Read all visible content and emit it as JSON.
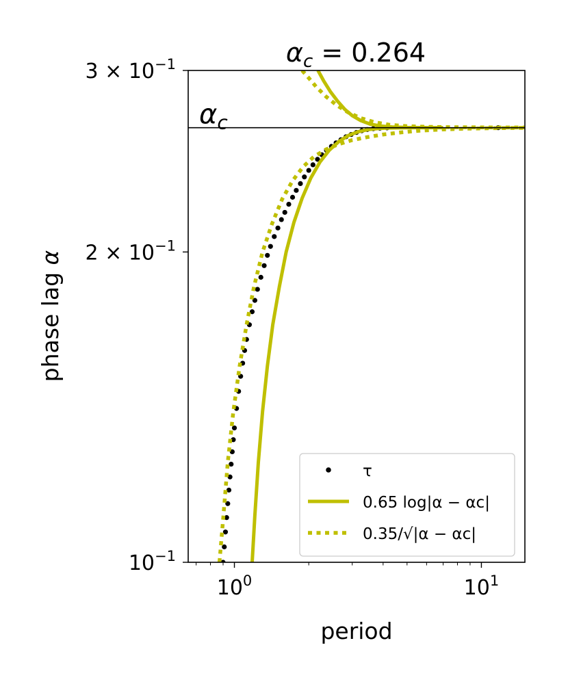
{
  "chart_data": {
    "type": "line",
    "title": "α_c = 0.264",
    "title_math": {
      "base": "α",
      "sub": "c",
      "rest": " = 0.264"
    },
    "xlabel": "period",
    "ylabel": "phase lag α",
    "xscale": "log",
    "yscale": "log",
    "xlim": [
      0.65,
      15
    ],
    "ylim": [
      0.1,
      0.3
    ],
    "x_ticks": [
      {
        "value": 1,
        "base": "10",
        "exp": "0"
      },
      {
        "value": 10,
        "base": "10",
        "exp": "1"
      }
    ],
    "y_ticks": [
      {
        "value": 0.1,
        "base": "10",
        "exp": "−1",
        "prefix": ""
      },
      {
        "value": 0.2,
        "base": "10",
        "exp": "−1",
        "prefix": "2 × "
      },
      {
        "value": 0.3,
        "base": "10",
        "exp": "−1",
        "prefix": "3 × "
      }
    ],
    "hline": {
      "y": 0.264,
      "label": "α",
      "label_sub": "c",
      "color": "#000000"
    },
    "grid": false,
    "legend": {
      "position": "bottom-right",
      "entries": [
        {
          "label": "τ",
          "style": "dots",
          "color": "#000000"
        },
        {
          "label": "0.65 log|α − αc|",
          "style": "solid",
          "color": "#bfbf00"
        },
        {
          "label": "0.35/√|α − αc|",
          "style": "dotted",
          "color": "#bfbf00"
        }
      ]
    },
    "series": [
      {
        "name": "τ",
        "style": "dots",
        "color": "#000000",
        "x": [
          0.9,
          0.91,
          0.92,
          0.93,
          0.94,
          0.95,
          0.96,
          0.97,
          0.98,
          0.99,
          1.0,
          1.02,
          1.04,
          1.06,
          1.08,
          1.1,
          1.12,
          1.15,
          1.18,
          1.21,
          1.24,
          1.28,
          1.32,
          1.36,
          1.4,
          1.45,
          1.5,
          1.55,
          1.6,
          1.66,
          1.72,
          1.78,
          1.85,
          1.92,
          2.0,
          2.08,
          2.17,
          2.26,
          2.36,
          2.47,
          2.58,
          2.7,
          2.83,
          2.97,
          3.12,
          3.28,
          3.45,
          3.65,
          3.88,
          4.15,
          11.7
        ],
        "y": [
          0.1,
          0.1035,
          0.107,
          0.1105,
          0.114,
          0.1175,
          0.121,
          0.1245,
          0.128,
          0.1315,
          0.135,
          0.141,
          0.1465,
          0.1515,
          0.156,
          0.1605,
          0.1645,
          0.17,
          0.175,
          0.1795,
          0.184,
          0.189,
          0.194,
          0.1985,
          0.2025,
          0.207,
          0.211,
          0.215,
          0.2185,
          0.2225,
          0.226,
          0.2295,
          0.233,
          0.2365,
          0.24,
          0.243,
          0.246,
          0.2485,
          0.251,
          0.2532,
          0.2552,
          0.257,
          0.2587,
          0.26,
          0.2612,
          0.2622,
          0.2629,
          0.2634,
          0.2637,
          0.2639,
          0.264
        ]
      },
      {
        "name": "0.65 log|α − αc|",
        "style": "solid",
        "color": "#bfbf00",
        "segments": [
          {
            "x": [
              1.18,
              1.21,
              1.25,
              1.3,
              1.36,
              1.43,
              1.52,
              1.62,
              1.74,
              1.88,
              2.04,
              2.22,
              2.42,
              2.65,
              2.9,
              3.18,
              3.48,
              3.82,
              4.2,
              4.7,
              5.5,
              7.0
            ],
            "y": [
              0.1,
              0.111,
              0.125,
              0.14,
              0.155,
              0.17,
              0.185,
              0.2,
              0.2135,
              0.2255,
              0.236,
              0.2445,
              0.251,
              0.256,
              0.2595,
              0.2617,
              0.2629,
              0.2635,
              0.2638,
              0.2639,
              0.264,
              0.264
            ]
          },
          {
            "x": [
              2.18,
              2.3,
              2.45,
              2.62,
              2.8,
              3.0,
              3.25,
              3.55,
              3.9,
              4.35,
              5.0,
              6.0
            ],
            "y": [
              0.3,
              0.293,
              0.286,
              0.28,
              0.275,
              0.2712,
              0.2682,
              0.2661,
              0.265,
              0.2644,
              0.2641,
              0.264
            ]
          }
        ]
      },
      {
        "name": "0.35/√|α − αc|",
        "style": "dotted",
        "color": "#bfbf00",
        "segments": [
          {
            "x": [
              0.87,
              0.9,
              0.94,
              0.99,
              1.05,
              1.12,
              1.2,
              1.3,
              1.42,
              1.56,
              1.72,
              1.9,
              2.1,
              2.35,
              2.65,
              3.0,
              3.45,
              4.0,
              4.7,
              5.6,
              6.8,
              8.5,
              11.0,
              15.0
            ],
            "y": [
              0.1,
              0.11,
              0.125,
              0.14,
              0.155,
              0.17,
              0.185,
              0.2,
              0.213,
              0.225,
              0.2345,
              0.242,
              0.2475,
              0.2515,
              0.2545,
              0.2568,
              0.2585,
              0.26,
              0.2612,
              0.2622,
              0.2629,
              0.2634,
              0.2637,
              0.2639
            ]
          },
          {
            "x": [
              1.88,
              2.0,
              2.15,
              2.35,
              2.6,
              2.9,
              3.25,
              3.7,
              4.25,
              5.0,
              6.0,
              7.5,
              9.5,
              12.0,
              15.0
            ],
            "y": [
              0.3,
              0.295,
              0.289,
              0.283,
              0.2775,
              0.273,
              0.2697,
              0.2672,
              0.2657,
              0.2649,
              0.2645,
              0.2643,
              0.2642,
              0.2641,
              0.2641
            ]
          }
        ]
      }
    ]
  }
}
